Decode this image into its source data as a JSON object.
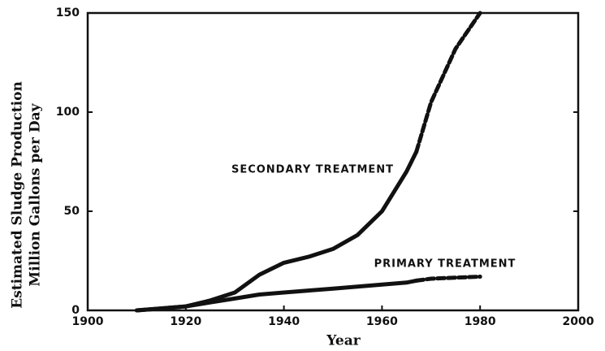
{
  "chart_data": {
    "type": "line",
    "x_label": "Year",
    "y_label": [
      "Estimated Sludge Production",
      "Million Gallons per Day"
    ],
    "x": [
      1910,
      1915,
      1920,
      1925,
      1930,
      1935,
      1940,
      1945,
      1950,
      1955,
      1960,
      1965,
      1967,
      1970,
      1975,
      1980
    ],
    "series": [
      {
        "name": "SECONDARY TREATMENT",
        "color": "#111111",
        "dash_start": 1967,
        "values": [
          0,
          1,
          2,
          5,
          9,
          18,
          24,
          27,
          31,
          38,
          50,
          70,
          80,
          105,
          132,
          150
        ]
      },
      {
        "name": "PRIMARY TREATMENT",
        "color": "#111111",
        "dash_start": 1967,
        "values": [
          0,
          1,
          2,
          4,
          6,
          8,
          9,
          10,
          11,
          12,
          13,
          14,
          15,
          16,
          16.5,
          17
        ]
      }
    ],
    "xlim": [
      1900,
      2000
    ],
    "xticks": [
      1900,
      1920,
      1940,
      1960,
      1980,
      2000
    ],
    "ylim": [
      0,
      150
    ],
    "yticks": [
      0,
      50,
      100,
      150
    ],
    "grid": false
  }
}
